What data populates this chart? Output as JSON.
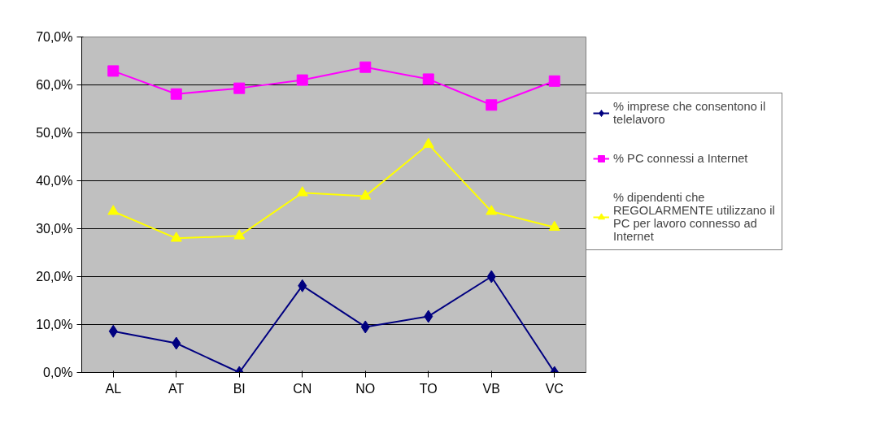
{
  "chart_data": {
    "type": "line",
    "categories": [
      "AL",
      "AT",
      "BI",
      "CN",
      "NO",
      "TO",
      "VB",
      "VC"
    ],
    "series": [
      {
        "name": "% imprese che consentono il telelavoro",
        "color": "#000080",
        "marker": "diamond",
        "values": [
          8.6,
          6.1,
          0.0,
          18.1,
          9.5,
          11.7,
          20.0,
          0.0
        ]
      },
      {
        "name": "% PC connessi a Internet",
        "color": "#ff00ff",
        "marker": "square",
        "values": [
          62.9,
          58.1,
          59.3,
          61.0,
          63.7,
          61.2,
          55.8,
          60.8
        ]
      },
      {
        "name": "% dipendenti che REGOLARMENTE utilizzano il PC per lavoro connesso ad Internet",
        "color": "#ffff00",
        "marker": "triangle",
        "values": [
          33.6,
          28.0,
          28.5,
          37.5,
          36.8,
          47.6,
          33.6,
          30.3
        ]
      }
    ],
    "ylim": [
      0,
      70
    ],
    "yticks": [
      {
        "value": 0,
        "label": "0,0%"
      },
      {
        "value": 10,
        "label": "10,0%"
      },
      {
        "value": 20,
        "label": "20,0%"
      },
      {
        "value": 30,
        "label": "30,0%"
      },
      {
        "value": 40,
        "label": "40,0%"
      },
      {
        "value": 50,
        "label": "50,0%"
      },
      {
        "value": 60,
        "label": "60,0%"
      },
      {
        "value": 70,
        "label": "70,0%"
      }
    ],
    "grid": "y",
    "legend": "right"
  }
}
